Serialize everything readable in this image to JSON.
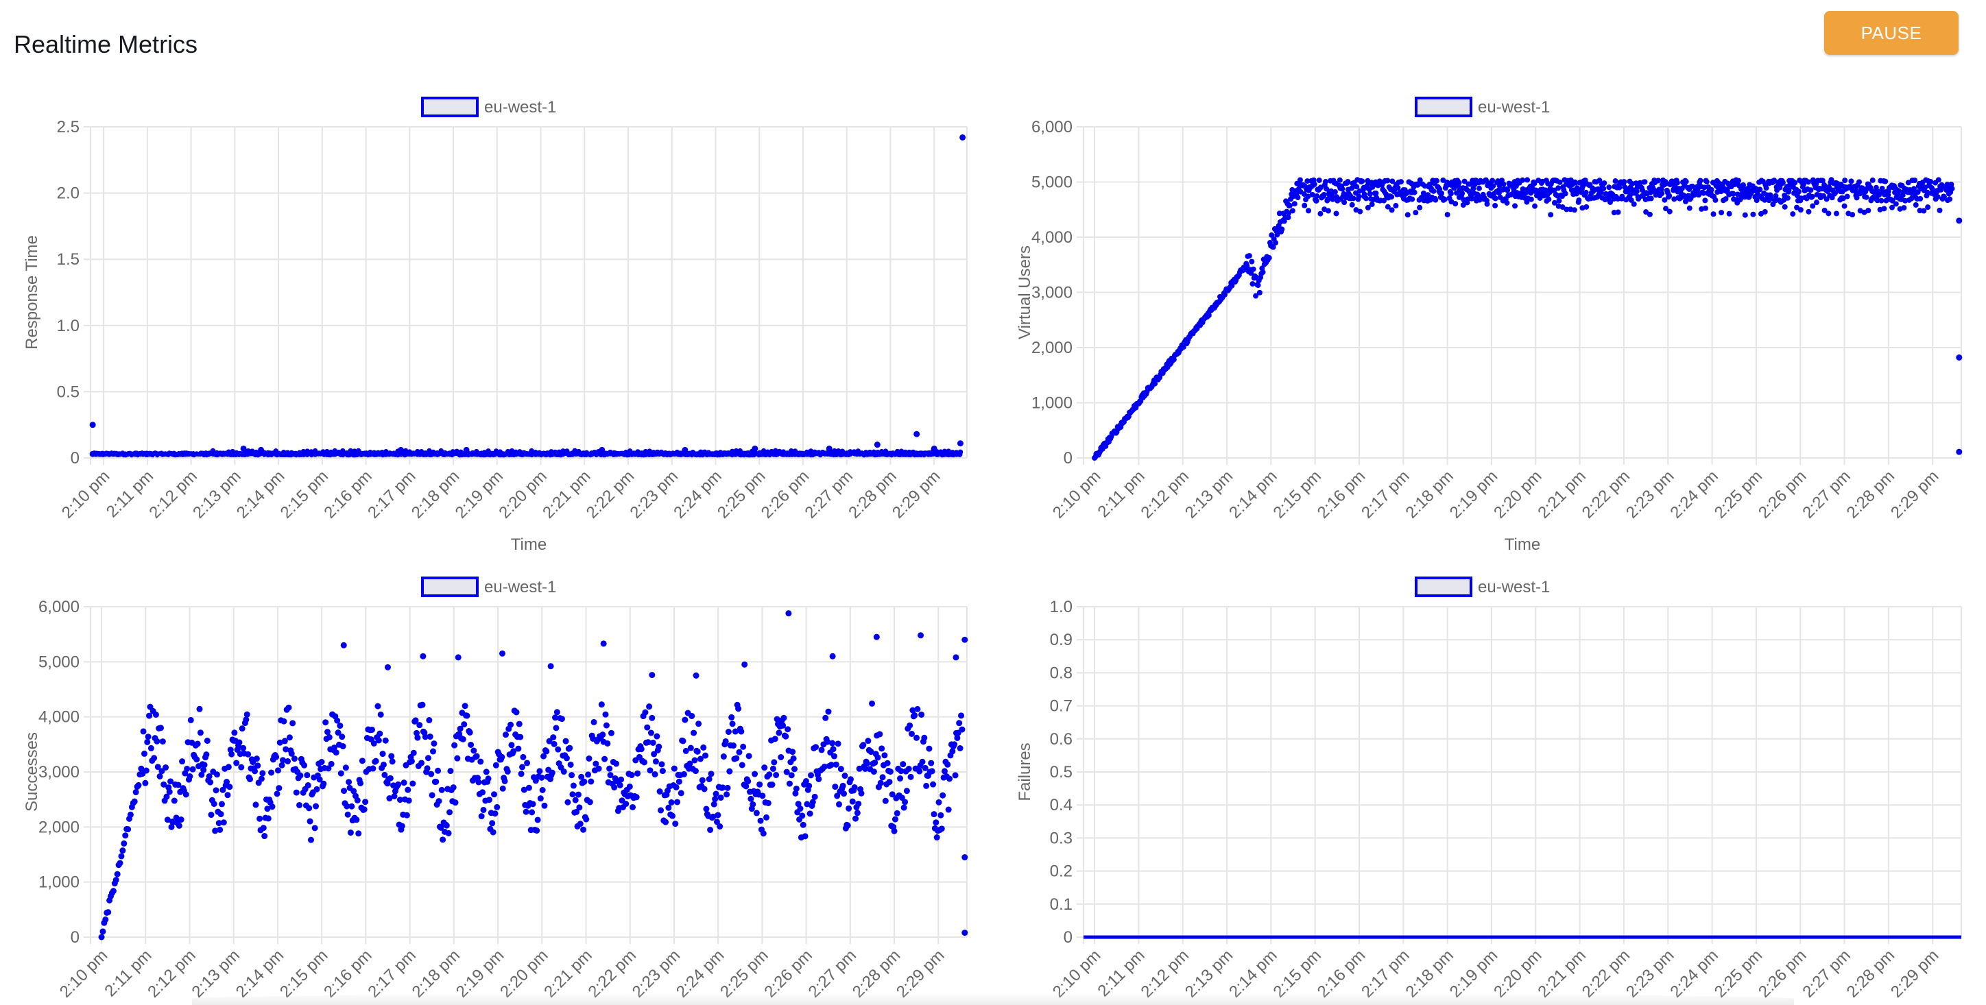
{
  "header": {
    "title": "Realtime Metrics",
    "pause_label": "PAUSE"
  },
  "colors": {
    "series": "#0000ee",
    "legend_fill": "#e6e6ef",
    "grid": "#e4e4e4",
    "axis_text": "#666666",
    "pause_button": "#f0a23c"
  },
  "time_labels": [
    "2:10 pm",
    "2:11 pm",
    "2:12 pm",
    "2:13 pm",
    "2:14 pm",
    "2:15 pm",
    "2:16 pm",
    "2:17 pm",
    "2:18 pm",
    "2:19 pm",
    "2:20 pm",
    "2:21 pm",
    "2:22 pm",
    "2:23 pm",
    "2:24 pm",
    "2:25 pm",
    "2:26 pm",
    "2:27 pm",
    "2:28 pm",
    "2:29 pm"
  ],
  "chart_data": [
    {
      "id": "response-time",
      "type": "scatter",
      "legend": "eu-west-1",
      "xlabel": "Time",
      "ylabel": "Response Time",
      "x_range_minutes": [
        -0.3,
        19.75
      ],
      "ylim": [
        0,
        2.5
      ],
      "yticks": [
        "0",
        "0.5",
        "1.0",
        "1.5",
        "2.0",
        "2.5"
      ],
      "yticks_values": [
        0,
        0.5,
        1.0,
        1.5,
        2.0,
        2.5
      ],
      "grid": true,
      "legend_position": "top-center",
      "series": [
        {
          "name": "eu-west-1",
          "points": [
            [
              -0.25,
              0.25
            ],
            [
              -0.25,
              0.03
            ],
            [
              3.2,
              0.07
            ],
            [
              3.6,
              0.06
            ],
            [
              6.8,
              0.06
            ],
            [
              8.3,
              0.06
            ],
            [
              11.4,
              0.06
            ],
            [
              13.3,
              0.06
            ],
            [
              14.9,
              0.07
            ],
            [
              16.6,
              0.07
            ],
            [
              17.7,
              0.1
            ],
            [
              18.6,
              0.18
            ],
            [
              19.0,
              0.07
            ],
            [
              19.6,
              0.11
            ],
            [
              19.65,
              2.42
            ]
          ],
          "baseline": {
            "value": 0.02,
            "jitter": 0.02
          }
        }
      ]
    },
    {
      "id": "virtual-users",
      "type": "scatter",
      "legend": "eu-west-1",
      "xlabel": "Time",
      "ylabel": "Virtual Users",
      "x_range_minutes": [
        -0.25,
        19.65
      ],
      "ylim": [
        0,
        6000
      ],
      "yticks": [
        "0",
        "1,000",
        "2,000",
        "3,000",
        "4,000",
        "5,000",
        "6,000"
      ],
      "yticks_values": [
        0,
        1000,
        2000,
        3000,
        4000,
        5000,
        6000
      ],
      "grid": true,
      "legend_position": "top-center",
      "series": [
        {
          "name": "eu-west-1",
          "trend": [
            [
              0,
              0
            ],
            [
              3.5,
              3550
            ],
            [
              3.7,
              3000
            ],
            [
              4.0,
              3900
            ],
            [
              4.35,
              4500
            ],
            [
              4.6,
              4850
            ],
            [
              19.4,
              4850
            ]
          ],
          "outliers": [
            [
              19.6,
              1820
            ],
            [
              19.6,
              110
            ],
            [
              19.6,
              4300
            ]
          ]
        }
      ]
    },
    {
      "id": "successes",
      "type": "scatter",
      "legend": "eu-west-1",
      "xlabel": "",
      "ylabel": "Successes",
      "x_range_minutes": [
        -0.25,
        19.65
      ],
      "ylim": [
        0,
        6000
      ],
      "yticks": [
        "0",
        "1,000",
        "2,000",
        "3,000",
        "4,000",
        "5,000",
        "6,000"
      ],
      "yticks_values": [
        0,
        1000,
        2000,
        3000,
        4000,
        5000,
        6000
      ],
      "grid": true,
      "legend_position": "top-center",
      "series": [
        {
          "name": "eu-west-1",
          "ramp": [
            [
              0,
              0
            ],
            [
              0.9,
              3000
            ]
          ],
          "band": {
            "center": 3000,
            "spread": 1200
          },
          "outliers": [
            [
              5.5,
              5300
            ],
            [
              6.5,
              4900
            ],
            [
              7.3,
              5100
            ],
            [
              8.1,
              5080
            ],
            [
              9.1,
              5150
            ],
            [
              10.2,
              4920
            ],
            [
              11.4,
              5330
            ],
            [
              12.5,
              4760
            ],
            [
              13.5,
              4750
            ],
            [
              14.6,
              4950
            ],
            [
              15.6,
              5880
            ],
            [
              16.6,
              5100
            ],
            [
              17.6,
              5450
            ],
            [
              18.6,
              5480
            ],
            [
              19.4,
              5080
            ],
            [
              19.6,
              5400
            ],
            [
              19.6,
              1450
            ],
            [
              19.6,
              80
            ]
          ]
        }
      ]
    },
    {
      "id": "failures",
      "type": "line",
      "legend": "eu-west-1",
      "xlabel": "",
      "ylabel": "Failures",
      "x_range_minutes": [
        -0.25,
        19.65
      ],
      "ylim": [
        0,
        1.0
      ],
      "yticks": [
        "0",
        "0.1",
        "0.2",
        "0.3",
        "0.4",
        "0.5",
        "0.6",
        "0.7",
        "0.8",
        "0.9",
        "1.0"
      ],
      "yticks_values": [
        0,
        0.1,
        0.2,
        0.3,
        0.4,
        0.5,
        0.6,
        0.7,
        0.8,
        0.9,
        1.0
      ],
      "grid": true,
      "legend_position": "top-center",
      "series": [
        {
          "name": "eu-west-1",
          "x": [
            -0.25,
            19.65
          ],
          "values": [
            0,
            0
          ]
        }
      ]
    }
  ]
}
